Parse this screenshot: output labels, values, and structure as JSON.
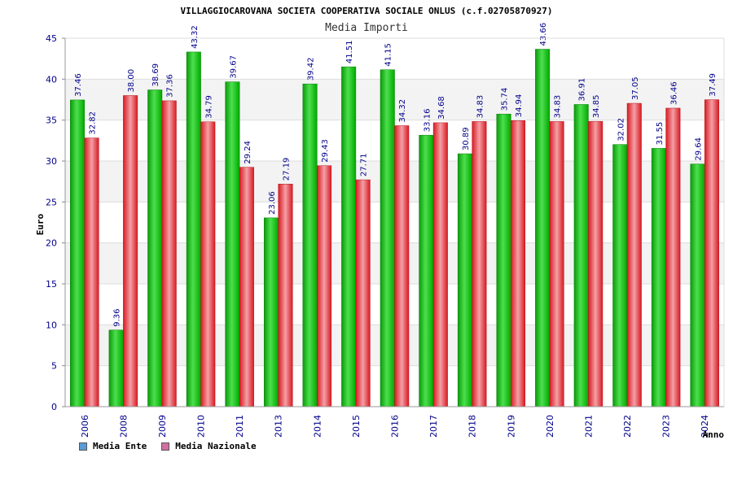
{
  "chart_data": {
    "type": "bar",
    "title": "VILLAGGIOCAROVANA SOCIETA COOPERATIVA SOCIALE ONLUS (c.f.02705870927)",
    "subtitle": "Media Importi",
    "xlabel": "Anno",
    "ylabel": "Euro",
    "ylim": [
      0,
      45
    ],
    "yticks": [
      0,
      5,
      10,
      15,
      20,
      25,
      30,
      35,
      40,
      45
    ],
    "grid": true,
    "legend_position": "bottom-left",
    "categories": [
      "2006",
      "2008",
      "2009",
      "2010",
      "2011",
      "2013",
      "2014",
      "2015",
      "2016",
      "2017",
      "2018",
      "2019",
      "2020",
      "2021",
      "2022",
      "2023",
      "2024"
    ],
    "series": [
      {
        "name": "Media Ente",
        "color": "#00b000",
        "legend_color": "#5b9bd5",
        "values": [
          37.46,
          9.36,
          38.69,
          43.32,
          39.67,
          23.06,
          39.42,
          41.51,
          41.15,
          33.16,
          30.89,
          35.74,
          43.66,
          36.91,
          32.02,
          31.55,
          29.64
        ],
        "labels": [
          "37.46",
          "9.36",
          "38.69",
          "43.32",
          "39.67",
          "23.06",
          "39.42",
          "41.51",
          "41.15",
          "33.16",
          "30.89",
          "35.74",
          "43.66",
          "36.91",
          "32.02",
          "31.55",
          "29.64"
        ]
      },
      {
        "name": "Media Nazionale",
        "color": "#e0202a",
        "legend_color": "#d070a0",
        "values": [
          32.82,
          38.0,
          37.36,
          34.79,
          29.24,
          27.19,
          29.43,
          27.71,
          34.32,
          34.68,
          34.83,
          34.94,
          34.83,
          34.85,
          37.05,
          36.46,
          37.49
        ],
        "labels": [
          "32.82",
          "38.00",
          "37.36",
          "34.79",
          "29.24",
          "27.19",
          "29.43",
          "27.71",
          "34.32",
          "34.68",
          "34.83",
          "34.94",
          "34.83",
          "34.85",
          "37.05",
          "36.46",
          "37.49"
        ]
      }
    ]
  }
}
